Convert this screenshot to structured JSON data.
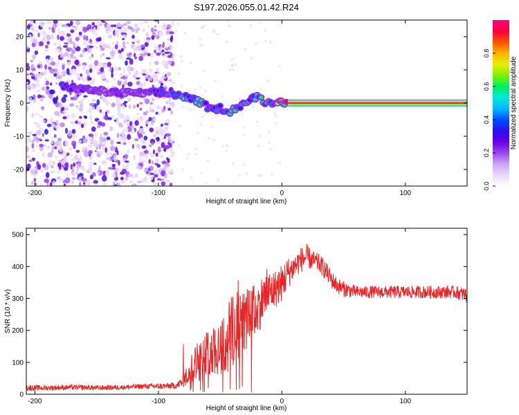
{
  "title": "S197.2026.055.01.42.R24",
  "colors": {
    "axis": "#000000",
    "snr_line": "#ee2222",
    "background": "#ffffff",
    "colormap": [
      "#ffffff",
      "#e8d8fb",
      "#c9a6f5",
      "#9a44ef",
      "#6a00e0",
      "#2a10f0",
      "#0050ff",
      "#00b8ff",
      "#00e8d8",
      "#00ee60",
      "#80f000",
      "#e8f000",
      "#ffb000",
      "#ff5000",
      "#ff0040",
      "#ff0080"
    ]
  },
  "chart_data": [
    {
      "type": "heatmap",
      "title": "S197.2026.055.01.42.R24",
      "xlabel": "Height of straight line (km)",
      "ylabel": "Frequency (Hz)",
      "xlim": [
        -207,
        150
      ],
      "ylim": [
        -25,
        25
      ],
      "xticks": [
        -200,
        -100,
        0,
        100
      ],
      "yticks": [
        -20,
        -10,
        0,
        10,
        20
      ],
      "xtick_labels": [
        "-200",
        "-100",
        "0",
        "100"
      ],
      "ytick_labels": [
        "-20",
        "-10",
        "0",
        "10",
        "20"
      ],
      "colorbar": {
        "label": "Normalized spectral amplitude",
        "range": [
          0,
          1
        ],
        "ticks": [
          0.0,
          0.2,
          0.4,
          0.6,
          0.8
        ],
        "tick_labels": [
          "0.0",
          "0.2",
          "0.4",
          "0.6",
          "0.8"
        ]
      },
      "noise_region_km": [
        -207,
        -88
      ],
      "ridge": {
        "description": "peak frequency track",
        "points": [
          {
            "x": -178,
            "y": 5,
            "amp": 0.35
          },
          {
            "x": -145,
            "y": 3.5,
            "amp": 0.2
          },
          {
            "x": -130,
            "y": 3,
            "amp": 0.25
          },
          {
            "x": -115,
            "y": 3,
            "amp": 0.2
          },
          {
            "x": -100,
            "y": 3,
            "amp": 0.35
          },
          {
            "x": -85,
            "y": 2.5,
            "amp": 0.5
          },
          {
            "x": -75,
            "y": 1.5,
            "amp": 0.45
          },
          {
            "x": -65,
            "y": 0,
            "amp": 0.6
          },
          {
            "x": -57,
            "y": -2,
            "amp": 0.35
          },
          {
            "x": -50,
            "y": -1.5,
            "amp": 0.4
          },
          {
            "x": -42,
            "y": -2.5,
            "amp": 0.55
          },
          {
            "x": -35,
            "y": -1,
            "amp": 0.5
          },
          {
            "x": -30,
            "y": 0,
            "amp": 0.45
          },
          {
            "x": -20,
            "y": 2,
            "amp": 0.5
          },
          {
            "x": -12,
            "y": 0,
            "amp": 0.55
          },
          {
            "x": -5,
            "y": 0.5,
            "amp": 0.6
          },
          {
            "x": 5,
            "y": 0,
            "amp": 0.9
          },
          {
            "x": 150,
            "y": 0,
            "amp": 0.9
          }
        ]
      }
    },
    {
      "type": "line",
      "xlabel": "Height of straight line (km)",
      "ylabel": "SNR (10 * v/v)",
      "xlim": [
        -207,
        150
      ],
      "ylim": [
        0,
        520
      ],
      "xticks": [
        -200,
        -100,
        0,
        100
      ],
      "yticks": [
        0,
        100,
        200,
        300,
        400,
        500
      ],
      "xtick_labels": [
        "-200",
        "-100",
        "0",
        "100"
      ],
      "ytick_labels": [
        "0",
        "100",
        "200",
        "300",
        "400",
        "500"
      ],
      "series": [
        {
          "name": "SNR",
          "x": [
            -207,
            -190,
            -170,
            -150,
            -130,
            -110,
            -95,
            -85,
            -80,
            -75,
            -70,
            -65,
            -60,
            -55,
            -50,
            -45,
            -40,
            -35,
            -30,
            -25,
            -20,
            -15,
            -10,
            -5,
            0,
            5,
            10,
            15,
            20,
            25,
            30,
            35,
            40,
            45,
            50,
            60,
            70,
            80,
            90,
            100,
            110,
            120,
            130,
            140,
            150
          ],
          "y": [
            20,
            20,
            22,
            20,
            22,
            25,
            25,
            28,
            40,
            70,
            100,
            110,
            130,
            140,
            150,
            160,
            200,
            220,
            230,
            250,
            270,
            300,
            320,
            330,
            350,
            380,
            400,
            420,
            430,
            420,
            410,
            390,
            360,
            340,
            330,
            320,
            320,
            320,
            320,
            320,
            320,
            320,
            320,
            320,
            310
          ],
          "noise_amp": [
            10,
            8,
            8,
            8,
            8,
            8,
            10,
            10,
            20,
            40,
            60,
            70,
            70,
            80,
            100,
            120,
            120,
            110,
            100,
            90,
            80,
            80,
            70,
            60,
            60,
            50,
            40,
            40,
            40,
            30,
            30,
            30,
            30,
            25,
            25,
            20,
            20,
            20,
            20,
            20,
            20,
            20,
            20,
            20,
            25
          ]
        }
      ]
    }
  ]
}
